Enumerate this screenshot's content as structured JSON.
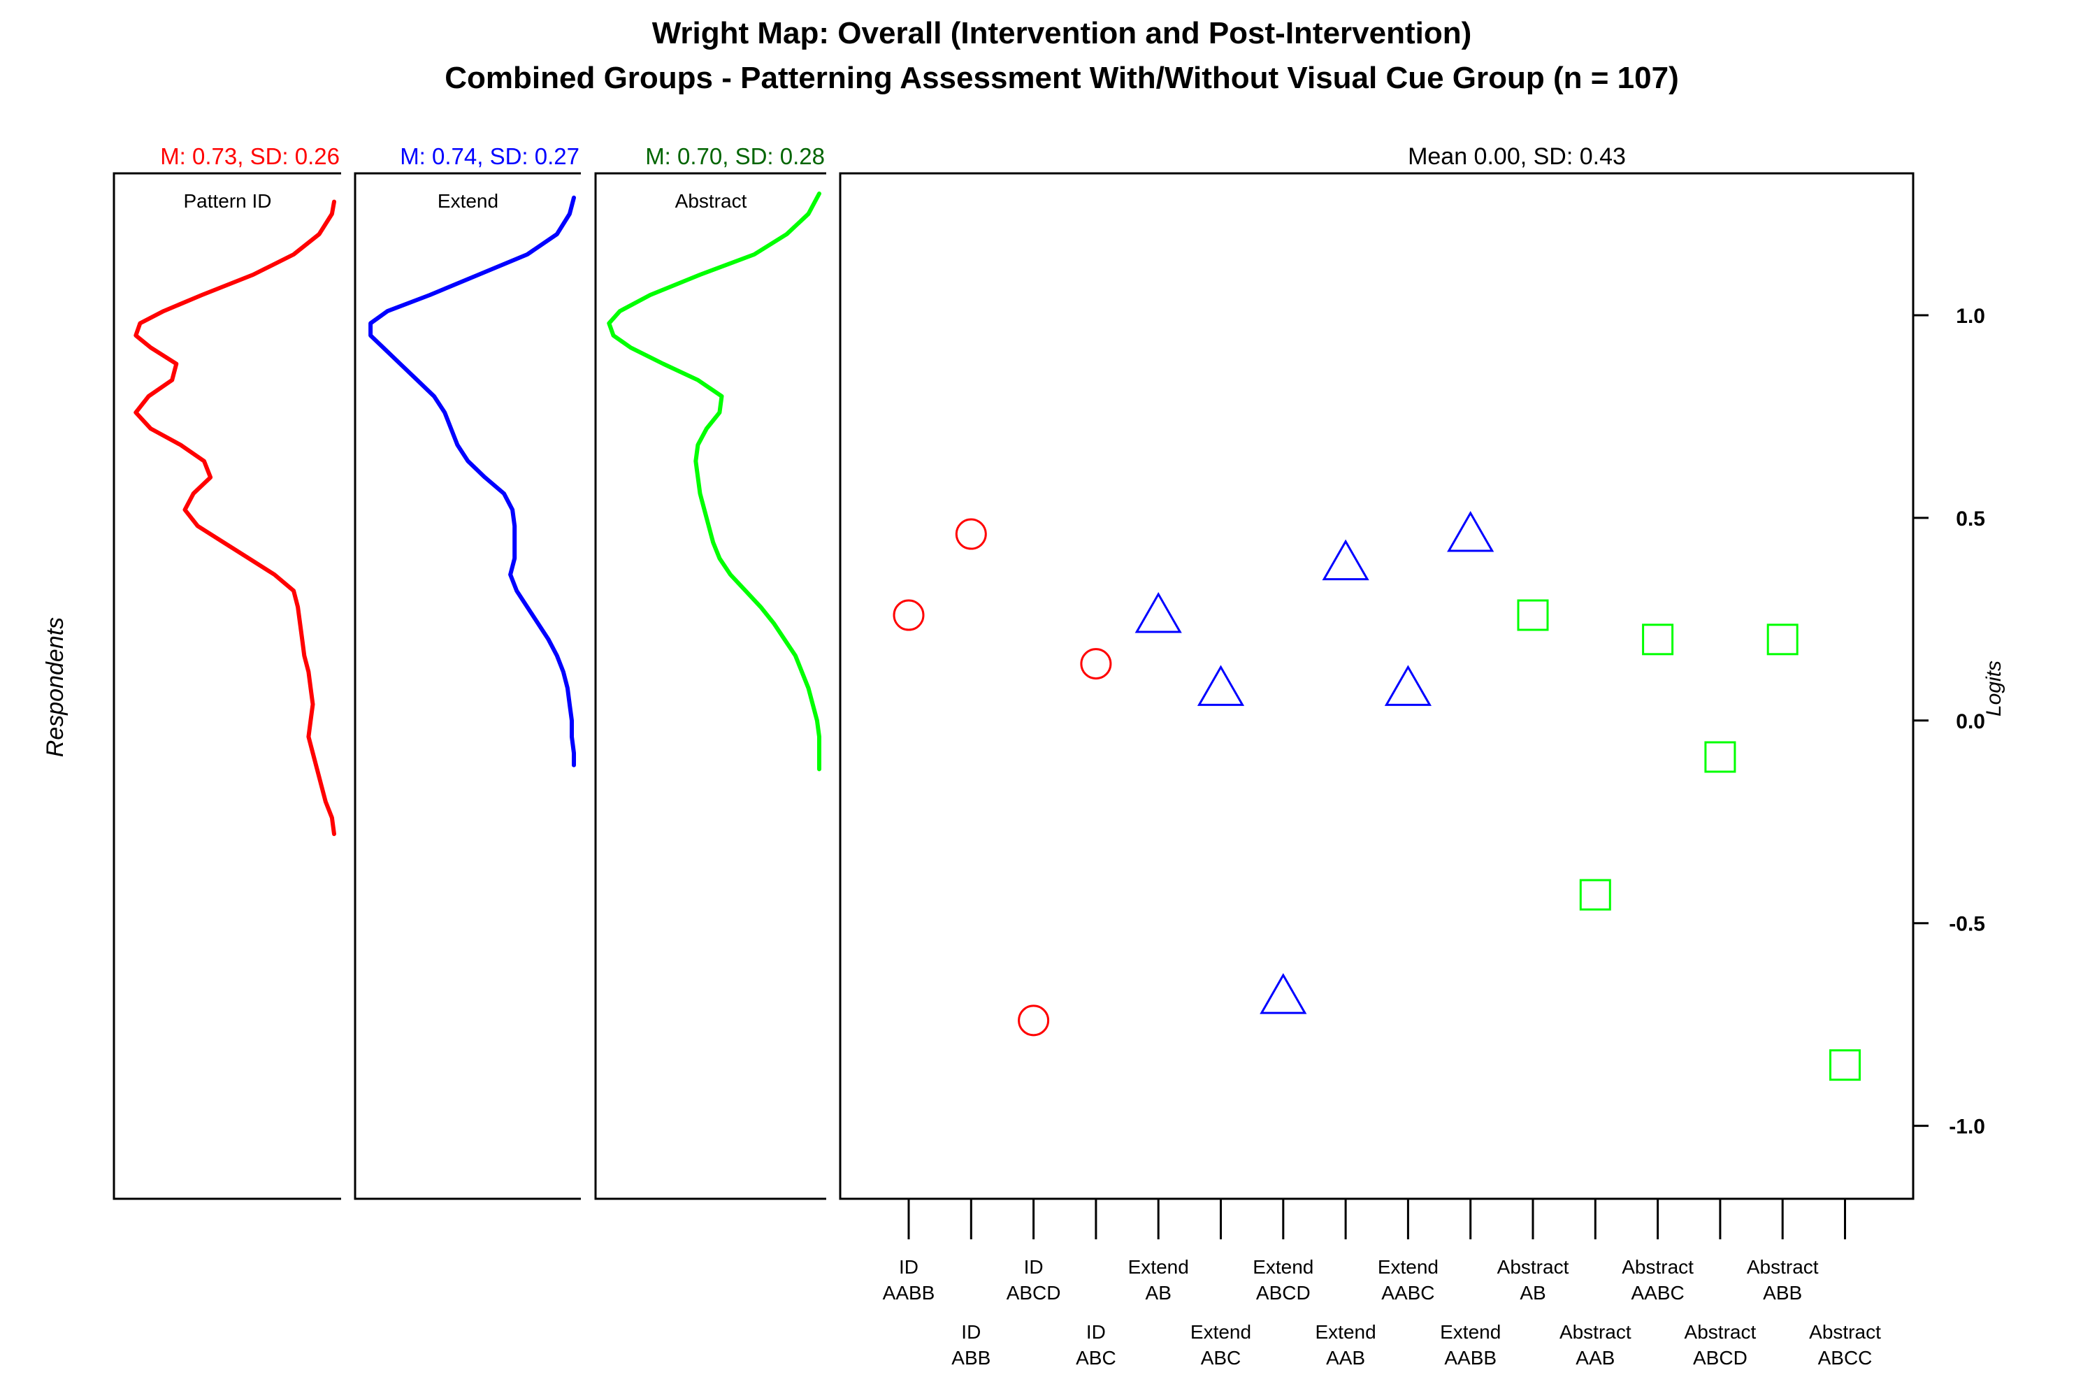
{
  "chart_data": {
    "type": "scatter",
    "title_line1": "Wright Map: Overall (Intervention and Post-Intervention)",
    "title_line2": "Combined Groups - Patterning Assessment With/Without Visual Cue Group (n = 107)",
    "ylabel_left": "Respondents",
    "ylabel_right": "Logits",
    "item_panel_header": "Mean 0.00, SD: 0.43",
    "ylim": [
      -1.18,
      1.35
    ],
    "yticks": [
      1.0,
      0.5,
      0.0,
      -0.5,
      -1.0
    ],
    "ytick_labels": [
      "1.0",
      "0.5",
      "0.0",
      "-0.5",
      "-1.0"
    ],
    "grid": false,
    "density_panels": [
      {
        "title": "Pattern ID",
        "stats_label": "M: 0.73, SD: 0.26",
        "color": "#ff0000",
        "density_y": [
          1.28,
          1.25,
          1.2,
          1.15,
          1.1,
          1.05,
          1.01,
          0.98,
          0.95,
          0.92,
          0.88,
          0.84,
          0.8,
          0.76,
          0.72,
          0.68,
          0.64,
          0.6,
          0.56,
          0.52,
          0.48,
          0.44,
          0.4,
          0.36,
          0.32,
          0.28,
          0.24,
          0.2,
          0.16,
          0.12,
          0.08,
          0.04,
          0.0,
          -0.04,
          -0.08,
          -0.12,
          -0.16,
          -0.2,
          -0.24,
          -0.28
        ],
        "density": [
          0.0,
          0.01,
          0.07,
          0.19,
          0.38,
          0.62,
          0.8,
          0.91,
          0.93,
          0.86,
          0.74,
          0.76,
          0.87,
          0.93,
          0.86,
          0.72,
          0.61,
          0.58,
          0.66,
          0.7,
          0.64,
          0.52,
          0.4,
          0.28,
          0.19,
          0.17,
          0.16,
          0.15,
          0.14,
          0.12,
          0.11,
          0.1,
          0.11,
          0.12,
          0.1,
          0.08,
          0.06,
          0.04,
          0.01,
          0.0
        ]
      },
      {
        "title": "Extend",
        "stats_label": "M: 0.74, SD: 0.27",
        "color": "#0000ff",
        "density_y": [
          1.29,
          1.25,
          1.2,
          1.15,
          1.1,
          1.05,
          1.01,
          0.98,
          0.95,
          0.92,
          0.88,
          0.84,
          0.8,
          0.76,
          0.72,
          0.68,
          0.64,
          0.6,
          0.56,
          0.52,
          0.48,
          0.44,
          0.4,
          0.36,
          0.32,
          0.28,
          0.24,
          0.2,
          0.16,
          0.12,
          0.08,
          0.04,
          0.0,
          -0.04,
          -0.08,
          -0.11
        ],
        "density": [
          0.0,
          0.02,
          0.08,
          0.22,
          0.45,
          0.68,
          0.88,
          0.96,
          0.96,
          0.9,
          0.82,
          0.74,
          0.66,
          0.61,
          0.58,
          0.55,
          0.5,
          0.42,
          0.33,
          0.29,
          0.28,
          0.28,
          0.28,
          0.3,
          0.27,
          0.22,
          0.17,
          0.12,
          0.08,
          0.05,
          0.03,
          0.02,
          0.01,
          0.01,
          0.0,
          0.0
        ]
      },
      {
        "title": "Abstract",
        "stats_label": "M: 0.70, SD: 0.28",
        "color": "#00ff00",
        "stats_color": "#006400",
        "density_y": [
          1.3,
          1.25,
          1.2,
          1.15,
          1.1,
          1.05,
          1.01,
          0.98,
          0.95,
          0.92,
          0.88,
          0.84,
          0.8,
          0.76,
          0.72,
          0.68,
          0.64,
          0.6,
          0.56,
          0.52,
          0.48,
          0.44,
          0.4,
          0.36,
          0.32,
          0.28,
          0.24,
          0.2,
          0.16,
          0.12,
          0.08,
          0.04,
          0.0,
          -0.04,
          -0.08,
          -0.12
        ],
        "density": [
          0.0,
          0.05,
          0.15,
          0.3,
          0.55,
          0.78,
          0.92,
          0.97,
          0.95,
          0.87,
          0.72,
          0.56,
          0.45,
          0.46,
          0.52,
          0.56,
          0.57,
          0.56,
          0.55,
          0.53,
          0.51,
          0.49,
          0.46,
          0.41,
          0.34,
          0.27,
          0.21,
          0.16,
          0.11,
          0.08,
          0.05,
          0.03,
          0.01,
          0.0,
          0.0,
          0.0
        ]
      }
    ],
    "series": [
      {
        "name": "Pattern ID",
        "marker": "circle",
        "color": "#ff0000"
      },
      {
        "name": "Extend",
        "marker": "triangle",
        "color": "#0000ff"
      },
      {
        "name": "Abstract",
        "marker": "square",
        "color": "#00ff00"
      }
    ],
    "items": [
      {
        "line1": "ID",
        "line2": "AABB",
        "series": 0,
        "value": 0.26
      },
      {
        "line1": "ID",
        "line2": "ABB",
        "series": 0,
        "value": 0.46
      },
      {
        "line1": "ID",
        "line2": "ABCD",
        "series": 0,
        "value": -0.74
      },
      {
        "line1": "ID",
        "line2": "ABC",
        "series": 0,
        "value": 0.14
      },
      {
        "line1": "Extend",
        "line2": "AB",
        "series": 1,
        "value": 0.26
      },
      {
        "line1": "Extend",
        "line2": "ABC",
        "series": 1,
        "value": 0.08
      },
      {
        "line1": "Extend",
        "line2": "ABCD",
        "series": 1,
        "value": -0.68
      },
      {
        "line1": "Extend",
        "line2": "AAB",
        "series": 1,
        "value": 0.39
      },
      {
        "line1": "Extend",
        "line2": "AABC",
        "series": 1,
        "value": 0.08
      },
      {
        "line1": "Extend",
        "line2": "AABB",
        "series": 1,
        "value": 0.46
      },
      {
        "line1": "Abstract",
        "line2": "AB",
        "series": 2,
        "value": 0.26
      },
      {
        "line1": "Abstract",
        "line2": "AAB",
        "series": 2,
        "value": -0.43
      },
      {
        "line1": "Abstract",
        "line2": "AABC",
        "series": 2,
        "value": 0.2
      },
      {
        "line1": "Abstract",
        "line2": "ABCD",
        "series": 2,
        "value": -0.09
      },
      {
        "line1": "Abstract",
        "line2": "ABB",
        "series": 2,
        "value": 0.2
      },
      {
        "line1": "Abstract",
        "line2": "ABCC",
        "series": 2,
        "value": -0.85
      }
    ]
  }
}
